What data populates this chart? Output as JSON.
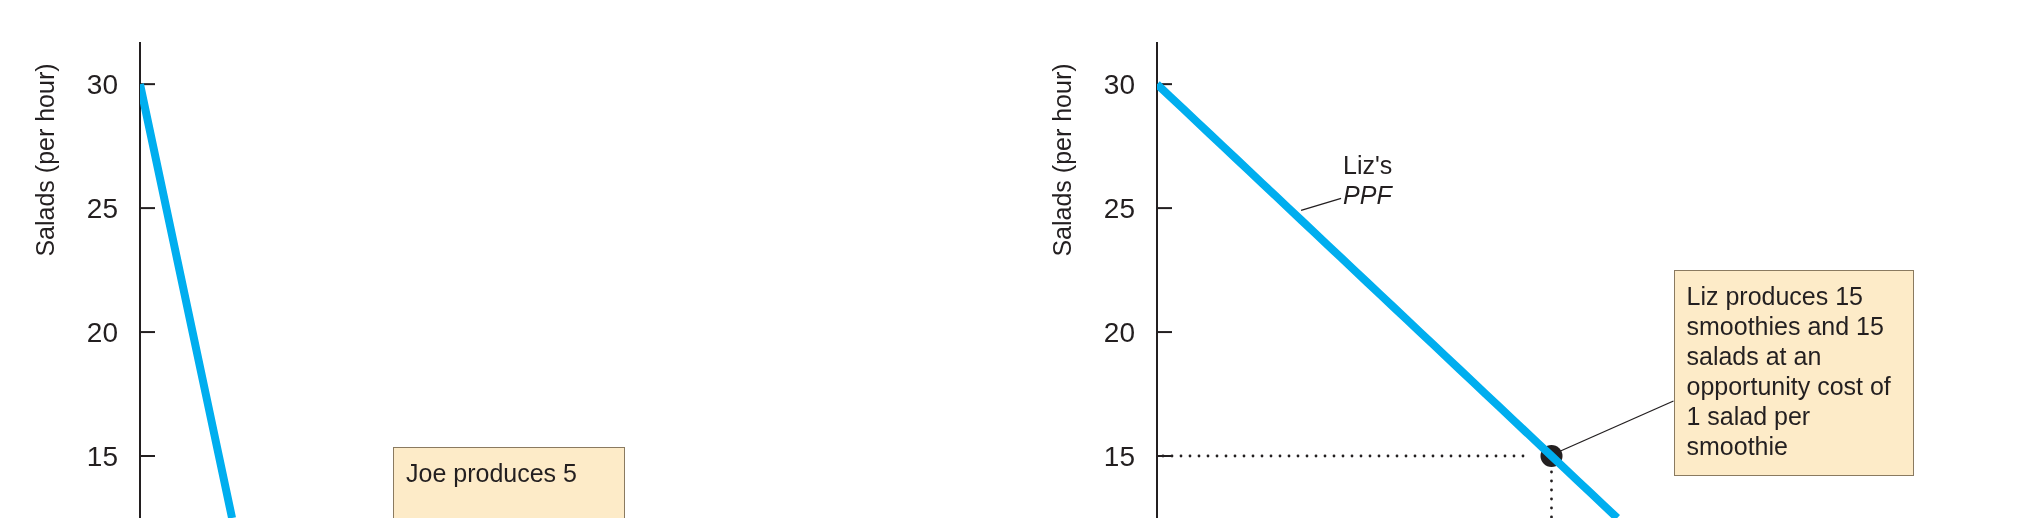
{
  "chart_data": [
    {
      "type": "line",
      "ylabel": "Salads (per hour)",
      "categories": [
        null,
        null,
        null,
        null,
        null,
        null,
        null,
        null
      ],
      "ylim": [
        12.5,
        31.7
      ],
      "yticks": [
        15,
        20,
        25,
        30
      ],
      "tick_labels": "y",
      "legend": false,
      "series": [
        {
          "color": "#00aeef",
          "values": [
            30,
            27.5,
            25,
            22.5,
            20,
            17.5,
            15,
            12.5
          ]
        }
      ],
      "annotations": [
        "Joe produces 5"
      ]
    },
    {
      "type": "line",
      "ylabel": "Salads (per hour)",
      "categories": [
        null,
        null,
        null,
        null,
        null,
        null,
        null,
        null,
        null,
        null,
        null,
        null,
        null,
        null,
        null,
        null,
        null,
        null,
        null,
        null,
        null,
        null,
        null,
        null,
        null,
        null,
        null,
        null,
        null,
        null,
        null,
        null,
        null,
        null,
        null,
        null
      ],
      "ylim": [
        12.5,
        31.7
      ],
      "yticks": [
        15,
        20,
        25,
        30
      ],
      "tick_labels": "y",
      "legend": false,
      "series": [
        {
          "type": "scatter",
          "color": "#231f20",
          "values": [
            null,
            null,
            null,
            null,
            null,
            null,
            null,
            null,
            null,
            null,
            null,
            null,
            null,
            null,
            null,
            null,
            null,
            null,
            null,
            null,
            null,
            null,
            null,
            null,
            null,
            null,
            null,
            null,
            null,
            null,
            15,
            null,
            null,
            null,
            null,
            null
          ]
        },
        {
          "name": "Liz's PPF",
          "color": "#00aeef",
          "values": [
            30,
            29.5,
            29,
            28.5,
            28,
            27.5,
            27,
            26.5,
            26,
            25.5,
            25,
            24.5,
            24,
            23.5,
            23,
            22.5,
            22,
            21.5,
            21,
            20.5,
            20,
            19.5,
            19,
            18.5,
            18,
            17.5,
            17,
            16.5,
            16,
            15.5,
            15,
            14.5,
            14,
            13.5,
            13,
            12.5
          ]
        }
      ],
      "annotations": [
        "Liz produces 15 smoothies and 15 salads at an opportunity cost of 1 salad per smoothie"
      ]
    }
  ]
}
